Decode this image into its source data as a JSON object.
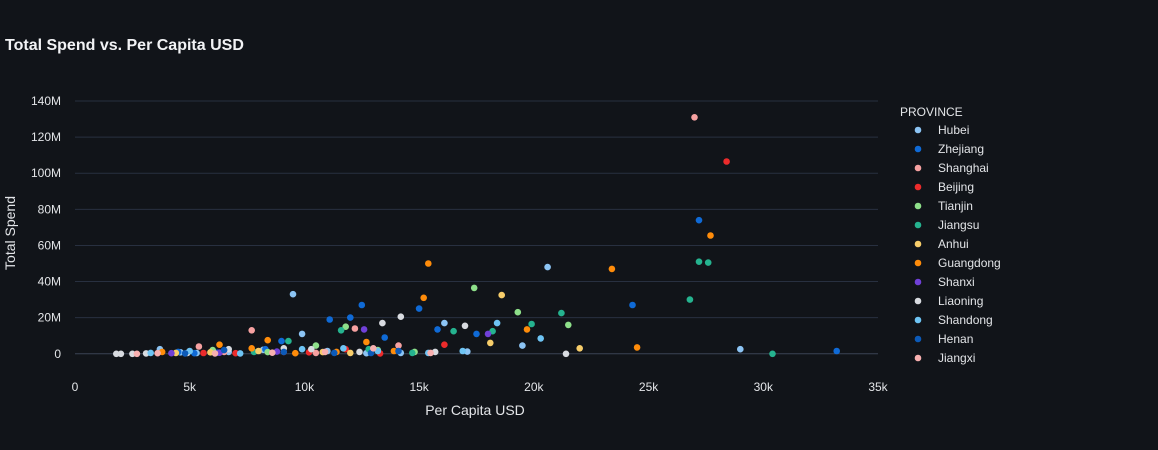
{
  "chart_data": {
    "type": "scatter",
    "title": "Total Spend vs. Per Capita USD",
    "xlabel": "Per Capita USD",
    "ylabel": "Total Spend",
    "xlim": [
      0,
      35000
    ],
    "ylim": [
      -9000000,
      145000000
    ],
    "x_ticks": [
      0,
      5000,
      10000,
      15000,
      20000,
      25000,
      30000,
      35000
    ],
    "x_tick_labels": [
      "0",
      "5k",
      "10k",
      "15k",
      "20k",
      "25k",
      "30k",
      "35k"
    ],
    "y_ticks": [
      0,
      20000000,
      40000000,
      60000000,
      80000000,
      100000000,
      120000000,
      140000000
    ],
    "y_tick_labels": [
      "0",
      "20M",
      "40M",
      "60M",
      "80M",
      "100M",
      "120M",
      "140M"
    ],
    "grid": true,
    "legend": {
      "title": "PROVINCE",
      "position": "right"
    },
    "series": [
      {
        "name": "Hubei",
        "color": "#8cc4f4",
        "points": [
          [
            3700,
            2500000
          ],
          [
            4600,
            800000
          ],
          [
            5300,
            400000
          ],
          [
            6700,
            1000000
          ],
          [
            8200,
            2200000
          ],
          [
            9500,
            33000000
          ],
          [
            9900,
            11000000
          ],
          [
            11000,
            1500000
          ],
          [
            12700,
            300000
          ],
          [
            14200,
            500000
          ],
          [
            16100,
            17000000
          ],
          [
            17100,
            1200000
          ],
          [
            19500,
            4500000
          ],
          [
            20600,
            48000000
          ],
          [
            29000,
            2500000
          ]
        ]
      },
      {
        "name": "Zhejiang",
        "color": "#0f6ad6",
        "points": [
          [
            4500,
            1000000
          ],
          [
            5200,
            300000
          ],
          [
            6200,
            600000
          ],
          [
            8300,
            2500000
          ],
          [
            9000,
            7000000
          ],
          [
            11100,
            19000000
          ],
          [
            12000,
            20000000
          ],
          [
            12500,
            27000000
          ],
          [
            13500,
            9000000
          ],
          [
            15000,
            25000000
          ],
          [
            15800,
            13500000
          ],
          [
            17500,
            11000000
          ],
          [
            24300,
            27000000
          ],
          [
            27200,
            74000000
          ],
          [
            33200,
            1500000
          ]
        ]
      },
      {
        "name": "Shanghai",
        "color": "#f6a1a1",
        "points": [
          [
            5400,
            4000000
          ],
          [
            6500,
            1000000
          ],
          [
            7700,
            13000000
          ],
          [
            10500,
            500000
          ],
          [
            12200,
            14000000
          ],
          [
            14100,
            4500000
          ],
          [
            27000,
            131000000
          ]
        ]
      },
      {
        "name": "Beijing",
        "color": "#ec2b2b",
        "points": [
          [
            5600,
            400000
          ],
          [
            7000,
            300000
          ],
          [
            9100,
            1000000
          ],
          [
            10200,
            800000
          ],
          [
            11800,
            2500000
          ],
          [
            13300,
            200000
          ],
          [
            16100,
            5000000
          ],
          [
            28400,
            106500000
          ]
        ]
      },
      {
        "name": "Tianjin",
        "color": "#8ee08a",
        "points": [
          [
            6000,
            2000000
          ],
          [
            8400,
            900000
          ],
          [
            10500,
            4500000
          ],
          [
            11800,
            15000000
          ],
          [
            13200,
            2000000
          ],
          [
            14800,
            1000000
          ],
          [
            17400,
            36500000
          ],
          [
            19300,
            23000000
          ],
          [
            21500,
            16000000
          ]
        ]
      },
      {
        "name": "Jiangsu",
        "color": "#25b38f",
        "points": [
          [
            7800,
            1000000
          ],
          [
            9300,
            7000000
          ],
          [
            11600,
            13000000
          ],
          [
            12800,
            2500000
          ],
          [
            14700,
            500000
          ],
          [
            16500,
            12500000
          ],
          [
            18200,
            12500000
          ],
          [
            19900,
            16500000
          ],
          [
            21200,
            22500000
          ],
          [
            26800,
            30000000
          ],
          [
            27200,
            51000000
          ],
          [
            27600,
            50500000
          ],
          [
            30400,
            0
          ]
        ]
      },
      {
        "name": "Anhui",
        "color": "#f7cd6a",
        "points": [
          [
            4400,
            500000
          ],
          [
            5900,
            800000
          ],
          [
            8000,
            1500000
          ],
          [
            10800,
            900000
          ],
          [
            12000,
            500000
          ],
          [
            18100,
            6000000
          ],
          [
            18600,
            32500000
          ],
          [
            22000,
            3000000
          ]
        ]
      },
      {
        "name": "Guangdong",
        "color": "#ff8c0a",
        "points": [
          [
            3800,
            1000000
          ],
          [
            6300,
            5000000
          ],
          [
            7700,
            3000000
          ],
          [
            8400,
            7500000
          ],
          [
            9600,
            300000
          ],
          [
            11400,
            1000000
          ],
          [
            12700,
            6500000
          ],
          [
            13900,
            1500000
          ],
          [
            15200,
            31000000
          ],
          [
            15400,
            50000000
          ],
          [
            19700,
            13500000
          ],
          [
            23400,
            47000000
          ],
          [
            24500,
            3500000
          ],
          [
            27700,
            65500000
          ]
        ]
      },
      {
        "name": "Shanxi",
        "color": "#7040d8",
        "points": [
          [
            4200,
            300000
          ],
          [
            6300,
            600000
          ],
          [
            8800,
            1200000
          ],
          [
            12600,
            13500000
          ],
          [
            18000,
            11000000
          ]
        ]
      },
      {
        "name": "Liaoning",
        "color": "#d8dbe0",
        "points": [
          [
            1800,
            0
          ],
          [
            2000,
            0
          ],
          [
            2500,
            0
          ],
          [
            3100,
            200000
          ],
          [
            4900,
            500000
          ],
          [
            6700,
            2500000
          ],
          [
            9100,
            3000000
          ],
          [
            10300,
            2500000
          ],
          [
            12400,
            1000000
          ],
          [
            13400,
            17000000
          ],
          [
            14200,
            20500000
          ],
          [
            15700,
            1000000
          ],
          [
            17000,
            15500000
          ],
          [
            21400,
            0
          ]
        ]
      },
      {
        "name": "Shandong",
        "color": "#6ec4f4",
        "points": [
          [
            3300,
            500000
          ],
          [
            5000,
            1500000
          ],
          [
            7200,
            200000
          ],
          [
            9900,
            2500000
          ],
          [
            11700,
            3000000
          ],
          [
            13200,
            1500000
          ],
          [
            15400,
            500000
          ],
          [
            16900,
            1500000
          ],
          [
            18400,
            17000000
          ],
          [
            20300,
            8500000
          ]
        ]
      },
      {
        "name": "Henan",
        "color": "#0c5ab8",
        "points": [
          [
            4800,
            200000
          ],
          [
            6500,
            2000000
          ],
          [
            9100,
            1000000
          ],
          [
            11300,
            500000
          ],
          [
            12900,
            400000
          ],
          [
            14100,
            1500000
          ]
        ]
      },
      {
        "name": "Jiangxi",
        "color": "#f8b0b0",
        "points": [
          [
            2700,
            0
          ],
          [
            3600,
            300000
          ],
          [
            6100,
            200000
          ],
          [
            8600,
            600000
          ],
          [
            10900,
            1000000
          ],
          [
            13000,
            3000000
          ],
          [
            15500,
            500000
          ]
        ]
      }
    ]
  }
}
